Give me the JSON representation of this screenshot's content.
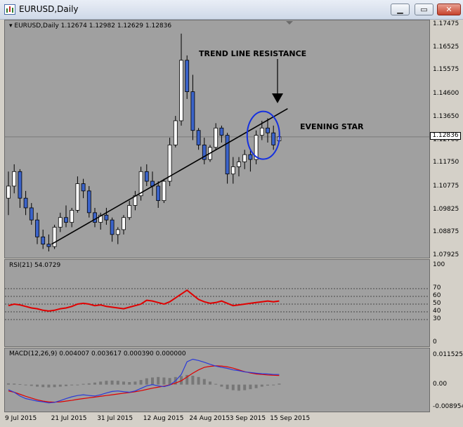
{
  "window": {
    "title": "EURUSD,Daily",
    "buttons": {
      "minimize": "▁",
      "maximize": "▭",
      "close": "✕"
    }
  },
  "main_chart": {
    "label": "EURUSD,Daily  1.12674 1.12982 1.12629 1.12836",
    "current_price": "1.12836",
    "price_ticks": [
      "1.17475",
      "1.16525",
      "1.15575",
      "1.14600",
      "1.13650",
      "1.12700",
      "1.11750",
      "1.10775",
      "1.09825",
      "1.08875",
      "1.07925"
    ],
    "annotations": {
      "trend_line": "TREND LINE RESISTANCE",
      "evening_star": "EVENING STAR"
    }
  },
  "rsi": {
    "label": "RSI(21) 54.0729",
    "ticks": [
      "100",
      "70",
      "60",
      "50",
      "40",
      "30",
      "0"
    ]
  },
  "macd": {
    "label": "MACD(12,26,9) 0.004007 0.003617 0.000390 0.000000",
    "ticks": [
      "0.011525",
      "0.00",
      "-0.008954"
    ]
  },
  "date_axis": [
    "9 Jul 2015",
    "21 Jul 2015",
    "31 Jul 2015",
    "12 Aug 2015",
    "24 Aug 2015",
    "3 Sep 2015",
    "15 Sep 2015"
  ],
  "colors": {
    "bull": "#ffffff",
    "bear": "#3b63c9",
    "rsi_line": "#e00000",
    "macd_main": "#2a3ad8",
    "macd_signal": "#e00000",
    "ellipse": "#1530e0"
  },
  "chart_data": [
    {
      "type": "candlestick",
      "title": "EURUSD,Daily",
      "ylim": [
        1.07925,
        1.17475
      ],
      "candles": [
        {
          "o": 1.103,
          "h": 1.114,
          "l": 1.096,
          "c": 1.108
        },
        {
          "o": 1.108,
          "h": 1.117,
          "l": 1.105,
          "c": 1.114
        },
        {
          "o": 1.114,
          "h": 1.115,
          "l": 1.099,
          "c": 1.103
        },
        {
          "o": 1.103,
          "h": 1.106,
          "l": 1.096,
          "c": 1.099
        },
        {
          "o": 1.099,
          "h": 1.101,
          "l": 1.092,
          "c": 1.094
        },
        {
          "o": 1.094,
          "h": 1.097,
          "l": 1.084,
          "c": 1.087
        },
        {
          "o": 1.087,
          "h": 1.09,
          "l": 1.082,
          "c": 1.084
        },
        {
          "o": 1.084,
          "h": 1.088,
          "l": 1.081,
          "c": 1.083
        },
        {
          "o": 1.083,
          "h": 1.092,
          "l": 1.082,
          "c": 1.091
        },
        {
          "o": 1.091,
          "h": 1.097,
          "l": 1.089,
          "c": 1.095
        },
        {
          "o": 1.095,
          "h": 1.1,
          "l": 1.091,
          "c": 1.093
        },
        {
          "o": 1.093,
          "h": 1.099,
          "l": 1.091,
          "c": 1.098
        },
        {
          "o": 1.098,
          "h": 1.112,
          "l": 1.097,
          "c": 1.109
        },
        {
          "o": 1.109,
          "h": 1.111,
          "l": 1.103,
          "c": 1.106
        },
        {
          "o": 1.106,
          "h": 1.108,
          "l": 1.095,
          "c": 1.097
        },
        {
          "o": 1.097,
          "h": 1.099,
          "l": 1.091,
          "c": 1.093
        },
        {
          "o": 1.093,
          "h": 1.097,
          "l": 1.09,
          "c": 1.096
        },
        {
          "o": 1.096,
          "h": 1.099,
          "l": 1.092,
          "c": 1.094
        },
        {
          "o": 1.094,
          "h": 1.095,
          "l": 1.085,
          "c": 1.088
        },
        {
          "o": 1.088,
          "h": 1.091,
          "l": 1.084,
          "c": 1.09
        },
        {
          "o": 1.09,
          "h": 1.096,
          "l": 1.088,
          "c": 1.095
        },
        {
          "o": 1.095,
          "h": 1.102,
          "l": 1.094,
          "c": 1.1
        },
        {
          "o": 1.1,
          "h": 1.106,
          "l": 1.098,
          "c": 1.104
        },
        {
          "o": 1.104,
          "h": 1.116,
          "l": 1.102,
          "c": 1.114
        },
        {
          "o": 1.114,
          "h": 1.117,
          "l": 1.108,
          "c": 1.11
        },
        {
          "o": 1.11,
          "h": 1.114,
          "l": 1.104,
          "c": 1.108
        },
        {
          "o": 1.108,
          "h": 1.11,
          "l": 1.099,
          "c": 1.102
        },
        {
          "o": 1.102,
          "h": 1.111,
          "l": 1.101,
          "c": 1.11
        },
        {
          "o": 1.11,
          "h": 1.128,
          "l": 1.108,
          "c": 1.125
        },
        {
          "o": 1.125,
          "h": 1.137,
          "l": 1.124,
          "c": 1.135
        },
        {
          "o": 1.135,
          "h": 1.171,
          "l": 1.133,
          "c": 1.16
        },
        {
          "o": 1.16,
          "h": 1.162,
          "l": 1.144,
          "c": 1.147
        },
        {
          "o": 1.147,
          "h": 1.154,
          "l": 1.127,
          "c": 1.131
        },
        {
          "o": 1.131,
          "h": 1.132,
          "l": 1.123,
          "c": 1.125
        },
        {
          "o": 1.125,
          "h": 1.128,
          "l": 1.117,
          "c": 1.119
        },
        {
          "o": 1.119,
          "h": 1.125,
          "l": 1.118,
          "c": 1.124
        },
        {
          "o": 1.124,
          "h": 1.134,
          "l": 1.123,
          "c": 1.132
        },
        {
          "o": 1.132,
          "h": 1.133,
          "l": 1.126,
          "c": 1.129
        },
        {
          "o": 1.129,
          "h": 1.13,
          "l": 1.109,
          "c": 1.113
        },
        {
          "o": 1.113,
          "h": 1.12,
          "l": 1.109,
          "c": 1.116
        },
        {
          "o": 1.116,
          "h": 1.12,
          "l": 1.112,
          "c": 1.118
        },
        {
          "o": 1.118,
          "h": 1.123,
          "l": 1.115,
          "c": 1.121
        },
        {
          "o": 1.121,
          "h": 1.123,
          "l": 1.114,
          "c": 1.119
        },
        {
          "o": 1.119,
          "h": 1.131,
          "l": 1.117,
          "c": 1.129
        },
        {
          "o": 1.129,
          "h": 1.135,
          "l": 1.127,
          "c": 1.132
        },
        {
          "o": 1.132,
          "h": 1.136,
          "l": 1.126,
          "c": 1.13
        },
        {
          "o": 1.13,
          "h": 1.133,
          "l": 1.123,
          "c": 1.125
        },
        {
          "o": 1.12674,
          "h": 1.12982,
          "l": 1.12629,
          "c": 1.12836
        }
      ],
      "trend_line": {
        "from_index": 7,
        "from_price": 1.084,
        "to_index": 47,
        "to_price": 1.14
      }
    },
    {
      "type": "line",
      "title": "RSI(21) 54.0729",
      "ylim": [
        0,
        100
      ],
      "levels": [
        70,
        60,
        50,
        40,
        30
      ],
      "series": [
        {
          "name": "RSI(21)",
          "values": [
            48,
            50,
            49,
            47,
            45,
            44,
            42,
            41,
            42,
            44,
            45,
            47,
            50,
            51,
            50,
            48,
            49,
            47,
            46,
            45,
            44,
            46,
            48,
            50,
            55,
            54,
            52,
            50,
            53,
            58,
            63,
            68,
            62,
            56,
            53,
            51,
            52,
            54,
            51,
            48,
            49,
            50,
            51,
            52,
            53,
            54,
            53,
            54
          ]
        }
      ]
    },
    {
      "type": "line",
      "title": "MACD(12,26,9) 0.004007 0.003617 0.000390 0.000000",
      "ylim": [
        -0.008954,
        0.011525
      ],
      "series": [
        {
          "name": "histogram",
          "values": [
            0.0005,
            0.0004,
            0.0002,
            -0.0002,
            -0.0005,
            -0.0008,
            -0.001,
            -0.0011,
            -0.001,
            -0.0008,
            -0.0006,
            -0.0003,
            0.0,
            0.0003,
            0.0005,
            0.0008,
            0.0012,
            0.0015,
            0.0016,
            0.0015,
            0.0012,
            0.001,
            0.0012,
            0.0018,
            0.0025,
            0.0028,
            0.003,
            0.0028,
            0.0026,
            0.003,
            0.0034,
            0.0038,
            0.0035,
            0.003,
            0.0022,
            0.0012,
            0.0003,
            -0.0008,
            -0.0018,
            -0.0022,
            -0.0024,
            -0.0022,
            -0.0018,
            -0.0014,
            -0.0008,
            -0.0004,
            0.0,
            0.0004
          ]
        },
        {
          "name": "MACD",
          "values": [
            -0.002,
            -0.003,
            -0.0045,
            -0.0055,
            -0.006,
            -0.0065,
            -0.0068,
            -0.0072,
            -0.007,
            -0.0063,
            -0.0055,
            -0.0048,
            -0.0043,
            -0.004,
            -0.0043,
            -0.0045,
            -0.004,
            -0.0033,
            -0.0027,
            -0.0025,
            -0.0028,
            -0.003,
            -0.0025,
            -0.0015,
            -0.0005,
            0.0,
            -0.0005,
            -0.0008,
            -0.0002,
            0.0015,
            0.004,
            0.009,
            0.01,
            0.0095,
            0.0088,
            0.008,
            0.0073,
            0.0068,
            0.0064,
            0.0058,
            0.0055,
            0.005,
            0.0048,
            0.0045,
            0.0043,
            0.0042,
            0.004,
            0.004
          ]
        },
        {
          "name": "Signal",
          "values": [
            -0.0025,
            -0.003,
            -0.0038,
            -0.0046,
            -0.0053,
            -0.006,
            -0.0065,
            -0.0068,
            -0.0069,
            -0.0068,
            -0.0065,
            -0.0062,
            -0.0058,
            -0.0055,
            -0.0052,
            -0.0049,
            -0.0046,
            -0.0043,
            -0.004,
            -0.0037,
            -0.0034,
            -0.0031,
            -0.0028,
            -0.0024,
            -0.0019,
            -0.0014,
            -0.001,
            -0.0006,
            -0.0001,
            0.0006,
            0.0015,
            0.003,
            0.0045,
            0.0058,
            0.0068,
            0.0072,
            0.0074,
            0.0073,
            0.007,
            0.0065,
            0.0058,
            0.0051,
            0.0046,
            0.0042,
            0.004,
            0.0038,
            0.0037,
            0.0036
          ]
        }
      ]
    }
  ]
}
